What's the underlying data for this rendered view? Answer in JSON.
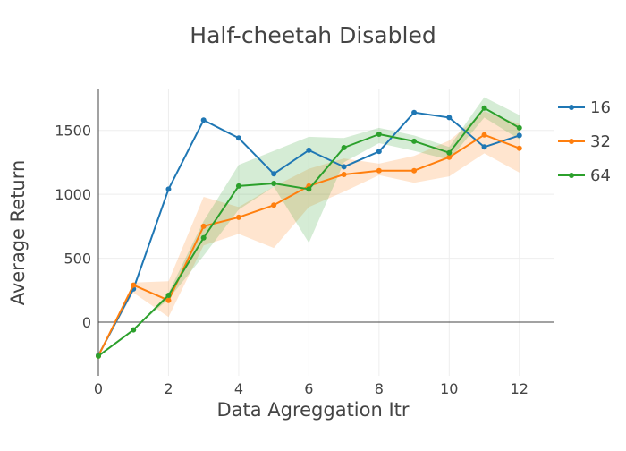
{
  "chart_data": {
    "type": "line",
    "title": "Half-cheetah Disabled",
    "xlabel": "Data Agreggation Itr",
    "ylabel": "Average Return",
    "xlim": [
      0,
      13
    ],
    "ylim": [
      -420,
      1820
    ],
    "x_ticks": [
      0,
      2,
      4,
      6,
      8,
      10,
      12
    ],
    "y_ticks": [
      0,
      500,
      1000,
      1500
    ],
    "x": [
      0,
      1,
      2,
      3,
      4,
      5,
      6,
      7,
      8,
      9,
      10,
      11,
      12
    ],
    "grid": true,
    "legend_position": "right",
    "series": [
      {
        "name": "16",
        "color": "#1f77b4",
        "values": [
          -260,
          260,
          1040,
          1580,
          1440,
          1160,
          1345,
          1215,
          1335,
          1640,
          1600,
          1370,
          1460
        ]
      },
      {
        "name": "32",
        "color": "#ff7f0e",
        "values": [
          -265,
          290,
          170,
          750,
          820,
          915,
          1065,
          1155,
          1185,
          1185,
          1290,
          1465,
          1360
        ],
        "band_lower": [
          -265,
          230,
          40,
          600,
          690,
          580,
          900,
          1020,
          1150,
          1090,
          1140,
          1320,
          1170
        ],
        "band_upper": [
          -265,
          310,
          320,
          980,
          900,
          1060,
          1200,
          1280,
          1240,
          1300,
          1420,
          1650,
          1550
        ]
      },
      {
        "name": "64",
        "color": "#2ca02c",
        "values": [
          -265,
          -60,
          210,
          660,
          1065,
          1085,
          1040,
          1365,
          1470,
          1415,
          1325,
          1675,
          1520
        ],
        "band_lower": [
          -265,
          -60,
          180,
          520,
          880,
          1060,
          620,
          1250,
          1400,
          1340,
          1270,
          1600,
          1430
        ],
        "band_upper": [
          -265,
          -60,
          230,
          790,
          1230,
          1340,
          1450,
          1440,
          1520,
          1460,
          1370,
          1760,
          1620
        ]
      }
    ]
  }
}
